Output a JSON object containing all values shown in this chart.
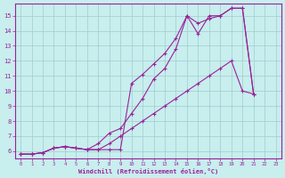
{
  "xlabel": "Windchill (Refroidissement éolien,°C)",
  "xlim": [
    -0.5,
    23.5
  ],
  "ylim": [
    5.5,
    15.8
  ],
  "xticks": [
    0,
    1,
    2,
    3,
    4,
    5,
    6,
    7,
    8,
    9,
    10,
    11,
    12,
    13,
    14,
    15,
    16,
    17,
    18,
    19,
    20,
    21,
    22,
    23
  ],
  "yticks": [
    6,
    7,
    8,
    9,
    10,
    11,
    12,
    13,
    14,
    15
  ],
  "bg_color": "#c8eeee",
  "grid_color": "#a0cccc",
  "line_color": "#992299",
  "line1_x": [
    0,
    1,
    2,
    3,
    4,
    5,
    6,
    7,
    8,
    9,
    10,
    11,
    12,
    13,
    14,
    15,
    16,
    17,
    18,
    19,
    20,
    21
  ],
  "line1_y": [
    5.8,
    5.8,
    5.9,
    6.2,
    6.3,
    6.2,
    6.1,
    6.1,
    6.1,
    6.1,
    10.5,
    11.1,
    11.8,
    12.5,
    13.5,
    15.0,
    13.8,
    15.0,
    15.0,
    15.5,
    15.5,
    9.8
  ],
  "line2_x": [
    0,
    1,
    2,
    3,
    4,
    5,
    6,
    7,
    8,
    9,
    10,
    11,
    12,
    13,
    14,
    15,
    16,
    17,
    18,
    19,
    20,
    21
  ],
  "line2_y": [
    5.8,
    5.8,
    5.9,
    6.2,
    6.3,
    6.2,
    6.1,
    6.5,
    7.2,
    7.5,
    8.5,
    9.5,
    10.8,
    11.5,
    12.8,
    15.0,
    14.5,
    14.8,
    15.0,
    15.5,
    15.5,
    9.8
  ],
  "line3_x": [
    0,
    1,
    2,
    3,
    4,
    5,
    6,
    7,
    8,
    9,
    10,
    11,
    12,
    13,
    14,
    15,
    16,
    17,
    18,
    19,
    20,
    21
  ],
  "line3_y": [
    5.8,
    5.8,
    5.9,
    6.2,
    6.3,
    6.2,
    6.1,
    6.1,
    6.5,
    7.0,
    7.5,
    8.0,
    8.5,
    9.0,
    9.5,
    10.0,
    10.5,
    11.0,
    11.5,
    12.0,
    10.0,
    9.8
  ]
}
